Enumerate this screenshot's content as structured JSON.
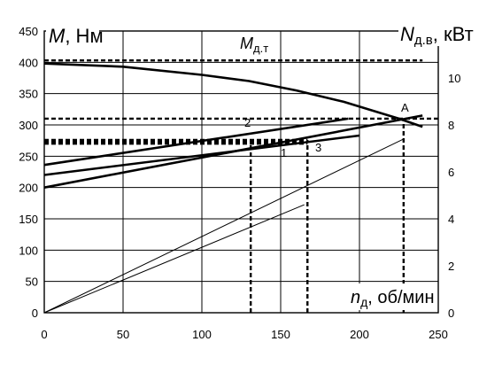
{
  "chart_data": {
    "type": "line",
    "grid": true,
    "x_axis": {
      "range": [
        0,
        250
      ],
      "ticks": [
        "0",
        "50",
        "100",
        "150",
        "200",
        "250"
      ],
      "title_symbol": "n",
      "title_subscript": "д",
      "title_unit": ", об/мин"
    },
    "y_left": {
      "range": [
        0,
        450
      ],
      "ticks": [
        "0",
        "50",
        "100",
        "150",
        "200",
        "250",
        "300",
        "350",
        "400",
        "450"
      ],
      "title_symbol": "M",
      "title_unit": ", Нм"
    },
    "y_right": {
      "range": [
        0,
        12
      ],
      "ticks": [
        "0",
        "2",
        "4",
        "6",
        "8",
        "10"
      ],
      "title_symbol": "N",
      "title_subscript": "д.в",
      "title_unit": ", кВт"
    },
    "labels": {
      "mdt_symbol": "M",
      "mdt_subscript": "д.т",
      "point_a": "A",
      "curve_1": "1",
      "curve_2": "2",
      "curve_3": "3"
    },
    "series": [
      {
        "axis": "left",
        "style": "thick",
        "points": [
          [
            0,
            398
          ],
          [
            50,
            393
          ],
          [
            100,
            380
          ],
          [
            130,
            370
          ],
          [
            160,
            355
          ],
          [
            190,
            337
          ],
          [
            225,
            310
          ],
          [
            240,
            297
          ]
        ]
      },
      {
        "axis": "left",
        "style": "thick",
        "points": [
          [
            0,
            236
          ],
          [
            193,
            310
          ]
        ]
      },
      {
        "axis": "left",
        "style": "thick",
        "points": [
          [
            0,
            220
          ],
          [
            200,
            283
          ]
        ]
      },
      {
        "axis": "left",
        "style": "thick",
        "points": [
          [
            0,
            200
          ],
          [
            240,
            315
          ]
        ]
      },
      {
        "axis": "right",
        "style": "thin",
        "points": [
          [
            0,
            0
          ],
          [
            228,
            7.4
          ]
        ]
      },
      {
        "axis": "right",
        "style": "thin",
        "points": [
          [
            0,
            0
          ],
          [
            165,
            4.6
          ]
        ]
      }
    ],
    "reference_lines": [
      {
        "orientation": "h",
        "axis": "left",
        "value": 403,
        "x_from": 0,
        "x_to": 240,
        "style": "dashed"
      },
      {
        "orientation": "h",
        "axis": "left",
        "value": 310,
        "x_from": 0,
        "x_to": 250,
        "style": "dashed"
      },
      {
        "orientation": "h",
        "axis": "left",
        "value": 276,
        "x_from": 0,
        "x_to": 167,
        "style": "dashed"
      },
      {
        "orientation": "h",
        "axis": "left",
        "value": 273,
        "x_from": 0,
        "x_to": 167,
        "style": "dashed"
      },
      {
        "orientation": "h",
        "axis": "left",
        "value": 270,
        "x_from": 0,
        "x_to": 167,
        "style": "dashed"
      },
      {
        "orientation": "v",
        "value": 131,
        "y_from": 0,
        "y_to": 276,
        "style": "dashed"
      },
      {
        "orientation": "v",
        "value": 167,
        "y_from": 0,
        "y_to": 276,
        "style": "dashed"
      },
      {
        "orientation": "v",
        "value": 228,
        "y_from": 0,
        "y_to": 310,
        "style": "dashed"
      }
    ]
  }
}
